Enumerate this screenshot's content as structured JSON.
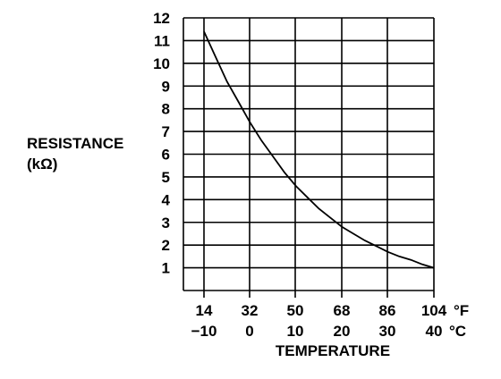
{
  "chart_data": {
    "type": "line",
    "title": "",
    "ylabel": [
      "RESISTANCE",
      "(kΩ)"
    ],
    "xlabel": "TEMPERATURE",
    "ylim": [
      0,
      12
    ],
    "xlim_c": [
      -10,
      40
    ],
    "y_ticks": [
      "1",
      "2",
      "3",
      "4",
      "5",
      "6",
      "7",
      "8",
      "9",
      "10",
      "11",
      "12"
    ],
    "x_ticks_f": [
      "14",
      "32",
      "50",
      "68",
      "86",
      "104"
    ],
    "x_ticks_c": [
      "−10",
      "0",
      "10",
      "20",
      "30",
      "40"
    ],
    "x_unit_f": "°F",
    "x_unit_c": "°C",
    "grid": true,
    "series": [
      {
        "x": [
          -10,
          -7.5,
          -5,
          -2.5,
          0,
          2.5,
          5,
          7.5,
          10,
          12.5,
          15,
          17.5,
          20,
          22.5,
          25,
          27.5,
          30,
          32.5,
          35,
          37.5,
          40
        ],
        "y": [
          11.4,
          10.3,
          9.2,
          8.3,
          7.4,
          6.6,
          5.9,
          5.2,
          4.6,
          4.1,
          3.6,
          3.2,
          2.8,
          2.5,
          2.2,
          1.95,
          1.7,
          1.5,
          1.35,
          1.15,
          1.0
        ]
      }
    ]
  }
}
